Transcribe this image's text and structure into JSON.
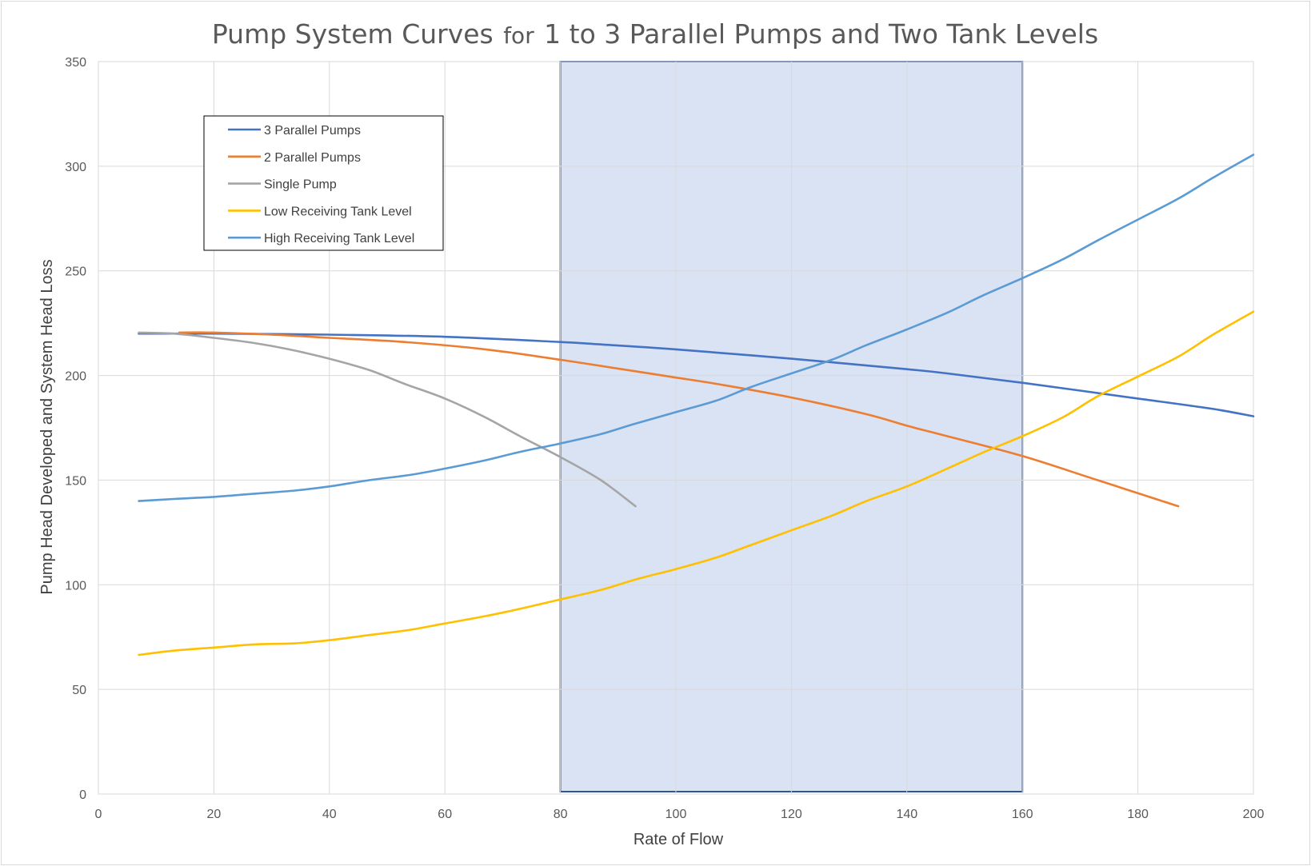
{
  "chart_data": {
    "type": "line",
    "title": {
      "part1": "Pump System Curves",
      "part2": "for",
      "part3": "1 to 3 Parallel Pumps and Two Tank Levels"
    },
    "xlabel": "Rate of Flow",
    "ylabel": "Pump Head Developed and  System Head Loss",
    "xlim": [
      0,
      200
    ],
    "ylim": [
      0,
      350
    ],
    "xticks": [
      0,
      20,
      40,
      60,
      80,
      100,
      120,
      140,
      160,
      180,
      200
    ],
    "yticks": [
      0,
      50,
      100,
      150,
      200,
      250,
      300,
      350
    ],
    "grid": true,
    "legend_position": "top-left inside plot",
    "highlight_region": {
      "x": [
        80,
        160
      ],
      "y": [
        0,
        350
      ],
      "fill": "#dae3f3",
      "border": "#2f5597"
    },
    "series": [
      {
        "name": "3 Parallel Pumps",
        "color": "#4472c4",
        "points": [
          [
            7,
            220
          ],
          [
            20,
            220
          ],
          [
            40,
            219.5
          ],
          [
            60,
            218.5
          ],
          [
            80,
            216
          ],
          [
            86,
            215
          ],
          [
            100,
            212.5
          ],
          [
            120,
            208
          ],
          [
            140,
            203
          ],
          [
            147,
            201
          ],
          [
            160,
            196.5
          ],
          [
            180,
            189
          ],
          [
            193,
            184
          ],
          [
            200,
            180.5
          ]
        ]
      },
      {
        "name": "2 Parallel Pumps",
        "color": "#ed7d31",
        "points": [
          [
            14,
            220.5
          ],
          [
            20,
            220.5
          ],
          [
            30,
            219.5
          ],
          [
            40,
            218
          ],
          [
            53,
            216
          ],
          [
            67,
            212.5
          ],
          [
            80,
            207.5
          ],
          [
            93,
            202
          ],
          [
            100,
            199
          ],
          [
            107,
            196
          ],
          [
            120,
            189.5
          ],
          [
            133,
            181.5
          ],
          [
            140,
            176
          ],
          [
            147,
            171
          ],
          [
            160,
            161.5
          ],
          [
            173,
            150
          ],
          [
            187,
            137.5
          ]
        ]
      },
      {
        "name": "Single Pump",
        "color": "#a5a5a5",
        "points": [
          [
            7,
            220.5
          ],
          [
            13,
            220
          ],
          [
            20,
            218
          ],
          [
            27,
            215.5
          ],
          [
            33,
            212.5
          ],
          [
            40,
            208
          ],
          [
            47,
            202.5
          ],
          [
            53,
            196
          ],
          [
            60,
            189
          ],
          [
            67,
            180
          ],
          [
            73,
            171
          ],
          [
            80,
            161
          ],
          [
            87,
            150
          ],
          [
            93,
            137.5
          ]
        ]
      },
      {
        "name": "Low Receiving Tank Level",
        "color": "#ffc000",
        "points": [
          [
            7,
            66.5
          ],
          [
            13,
            68.5
          ],
          [
            20,
            70
          ],
          [
            27,
            71.5
          ],
          [
            34,
            72
          ],
          [
            40,
            73.5
          ],
          [
            47,
            76
          ],
          [
            54,
            78.5
          ],
          [
            60,
            81.5
          ],
          [
            67,
            85
          ],
          [
            73,
            88.5
          ],
          [
            80,
            93
          ],
          [
            87,
            97.5
          ],
          [
            93,
            102.5
          ],
          [
            100,
            107.5
          ],
          [
            107,
            113
          ],
          [
            113,
            119
          ],
          [
            120,
            126
          ],
          [
            127,
            133
          ],
          [
            133,
            140
          ],
          [
            140,
            147
          ],
          [
            147,
            155.5
          ],
          [
            153,
            163
          ],
          [
            160,
            171
          ],
          [
            167,
            180
          ],
          [
            173,
            190
          ],
          [
            180,
            199.5
          ],
          [
            187,
            209
          ],
          [
            193,
            219.5
          ],
          [
            200,
            230.5
          ]
        ]
      },
      {
        "name": "High Receiving Tank Level",
        "color": "#5b9bd5",
        "points": [
          [
            7,
            140
          ],
          [
            13,
            141
          ],
          [
            20,
            142
          ],
          [
            27,
            143.5
          ],
          [
            34,
            145
          ],
          [
            40,
            147
          ],
          [
            47,
            150
          ],
          [
            54,
            152.5
          ],
          [
            60,
            155.5
          ],
          [
            67,
            159.5
          ],
          [
            73,
            163.5
          ],
          [
            80,
            167.5
          ],
          [
            87,
            172
          ],
          [
            93,
            177
          ],
          [
            100,
            182.5
          ],
          [
            107,
            188
          ],
          [
            113,
            194.5
          ],
          [
            120,
            201
          ],
          [
            127,
            207.5
          ],
          [
            133,
            214.5
          ],
          [
            140,
            222
          ],
          [
            147,
            230
          ],
          [
            153,
            238
          ],
          [
            160,
            246.5
          ],
          [
            167,
            255.5
          ],
          [
            173,
            264.5
          ],
          [
            180,
            274.5
          ],
          [
            187,
            284.5
          ],
          [
            193,
            294.5
          ],
          [
            200,
            305.5
          ]
        ]
      }
    ]
  }
}
